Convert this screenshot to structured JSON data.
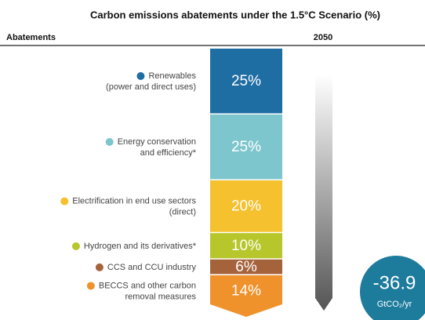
{
  "chart_data": {
    "type": "stacked-column",
    "title": "Carbon emissions abatements under the 1.5°C Scenario (%)",
    "category_header": "Abatements",
    "column_header": "2050",
    "categories": [
      [
        "Renewables",
        "(power and direct uses)"
      ],
      [
        "Energy conservation",
        "and efficiency*"
      ],
      [
        "Electrification in end use sectors",
        "(direct)"
      ],
      [
        "Hydrogen and its derivatives*"
      ],
      [
        "CCS and CCU industry"
      ],
      [
        "BECCS and other carbon",
        "removal measures"
      ]
    ],
    "values": [
      25,
      25,
      20,
      10,
      6,
      14
    ],
    "value_labels": [
      "25%",
      "25%",
      "20%",
      "10%",
      "6%",
      "14%"
    ],
    "colors": [
      "#1e6da3",
      "#7ec6cd",
      "#f5c12e",
      "#b6c62b",
      "#a5633c",
      "#ef922c"
    ],
    "total": {
      "value": "-36.9",
      "unit": "GtCO₂/yr",
      "color": "#1d7b9c"
    }
  }
}
